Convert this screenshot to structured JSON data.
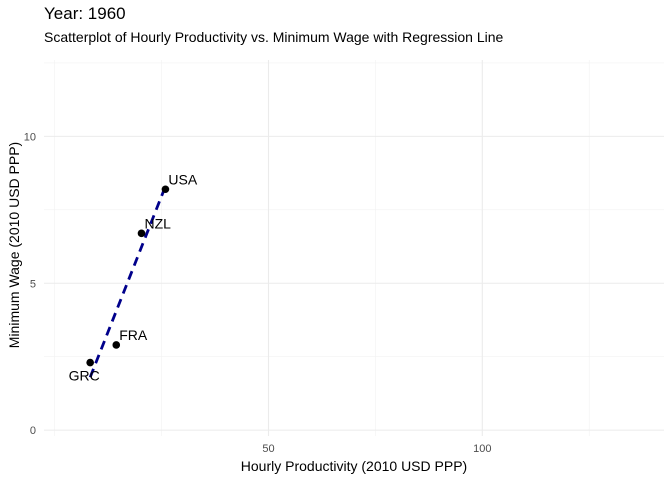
{
  "chart_data": {
    "type": "scatter",
    "title": "Year: 1960",
    "subtitle": "Scatterplot of Hourly Productivity vs. Minimum Wage with Regression Line",
    "xlabel": "Hourly Productivity (2010 USD PPP)",
    "ylabel": "Minimum Wage (2010 USD PPP)",
    "xlim": [
      -2.5,
      142.5
    ],
    "ylim": [
      -0.2,
      12.6
    ],
    "x_ticks": [
      50,
      100
    ],
    "y_ticks": [
      0,
      5,
      10
    ],
    "grid": true,
    "points": [
      {
        "label": "GRC",
        "x": 8.3,
        "y": 2.3
      },
      {
        "label": "FRA",
        "x": 14.4,
        "y": 2.9
      },
      {
        "label": "NZL",
        "x": 20.3,
        "y": 6.7
      },
      {
        "label": "USA",
        "x": 25.9,
        "y": 8.2
      }
    ],
    "regression": {
      "style": "dashed",
      "color": "#00008B",
      "x": [
        8.3,
        25.9
      ],
      "y": [
        1.8,
        8.3
      ]
    },
    "point_color": "#000000"
  }
}
